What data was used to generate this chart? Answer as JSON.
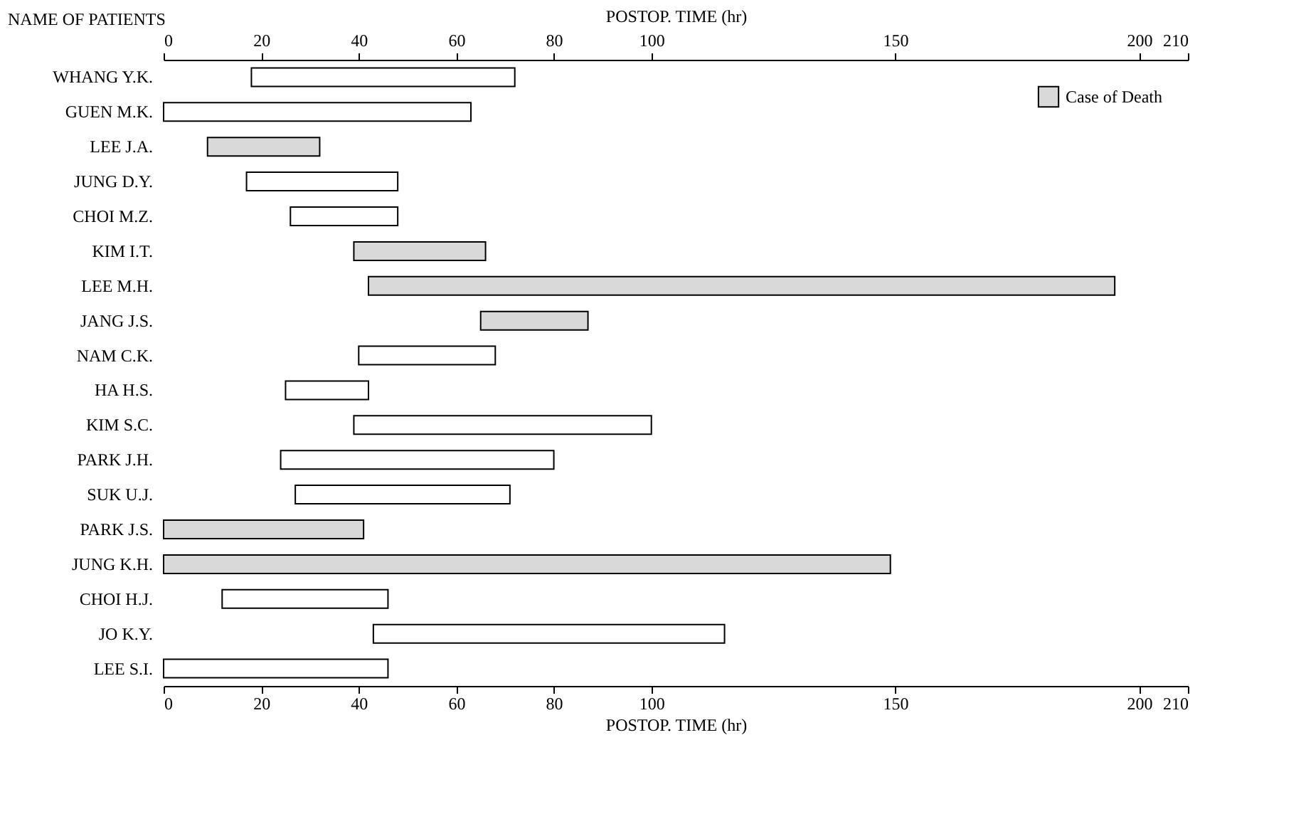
{
  "chart_data": {
    "type": "bar",
    "orientation": "horizontal",
    "ylabel": "NAME OF PATIENTS",
    "xlabel": "POSTOP. TIME (hr)",
    "x2label": "POSTOP. TIME (hr)",
    "categories": [
      "WHANG Y.K.",
      "GUEN M.K.",
      "LEE J.A.",
      "JUNG D.Y.",
      "CHOI M.Z.",
      "KIM I.T.",
      "LEE M.H.",
      "JANG J.S.",
      "NAM C.K.",
      "HA H.S.",
      "KIM S.C.",
      "PARK J.H.",
      "SUK U.J.",
      "PARK J.S.",
      "JUNG K.H.",
      "CHOI H.J.",
      "JO K.Y.",
      "LEE S.I."
    ],
    "series": [
      {
        "color": "#ffffff",
        "base": [
          18,
          0,
          null,
          17,
          26,
          null,
          null,
          null,
          40,
          25,
          39,
          24,
          27,
          null,
          null,
          12,
          43,
          0
        ],
        "values": [
          54,
          63,
          null,
          31,
          22,
          null,
          null,
          null,
          28,
          17,
          61,
          56,
          44,
          null,
          null,
          34,
          72,
          46
        ]
      },
      {
        "name": "Case of Death",
        "color": "#d9d9d9",
        "base": [
          null,
          null,
          9,
          null,
          null,
          39,
          42,
          65,
          null,
          null,
          null,
          null,
          null,
          0,
          0,
          null,
          null,
          null
        ],
        "values": [
          null,
          null,
          23,
          null,
          null,
          27,
          153,
          22,
          null,
          null,
          null,
          null,
          null,
          41,
          149,
          null,
          null,
          null
        ]
      }
    ],
    "xlim": [
      0,
      210
    ],
    "xticks": [
      0,
      20,
      40,
      60,
      80,
      100,
      150,
      200,
      210
    ],
    "x2lim": [
      0,
      210
    ],
    "x2ticks": [
      0,
      20,
      40,
      60,
      80,
      100,
      150,
      200,
      210
    ],
    "grid": false,
    "legend": "top right"
  }
}
